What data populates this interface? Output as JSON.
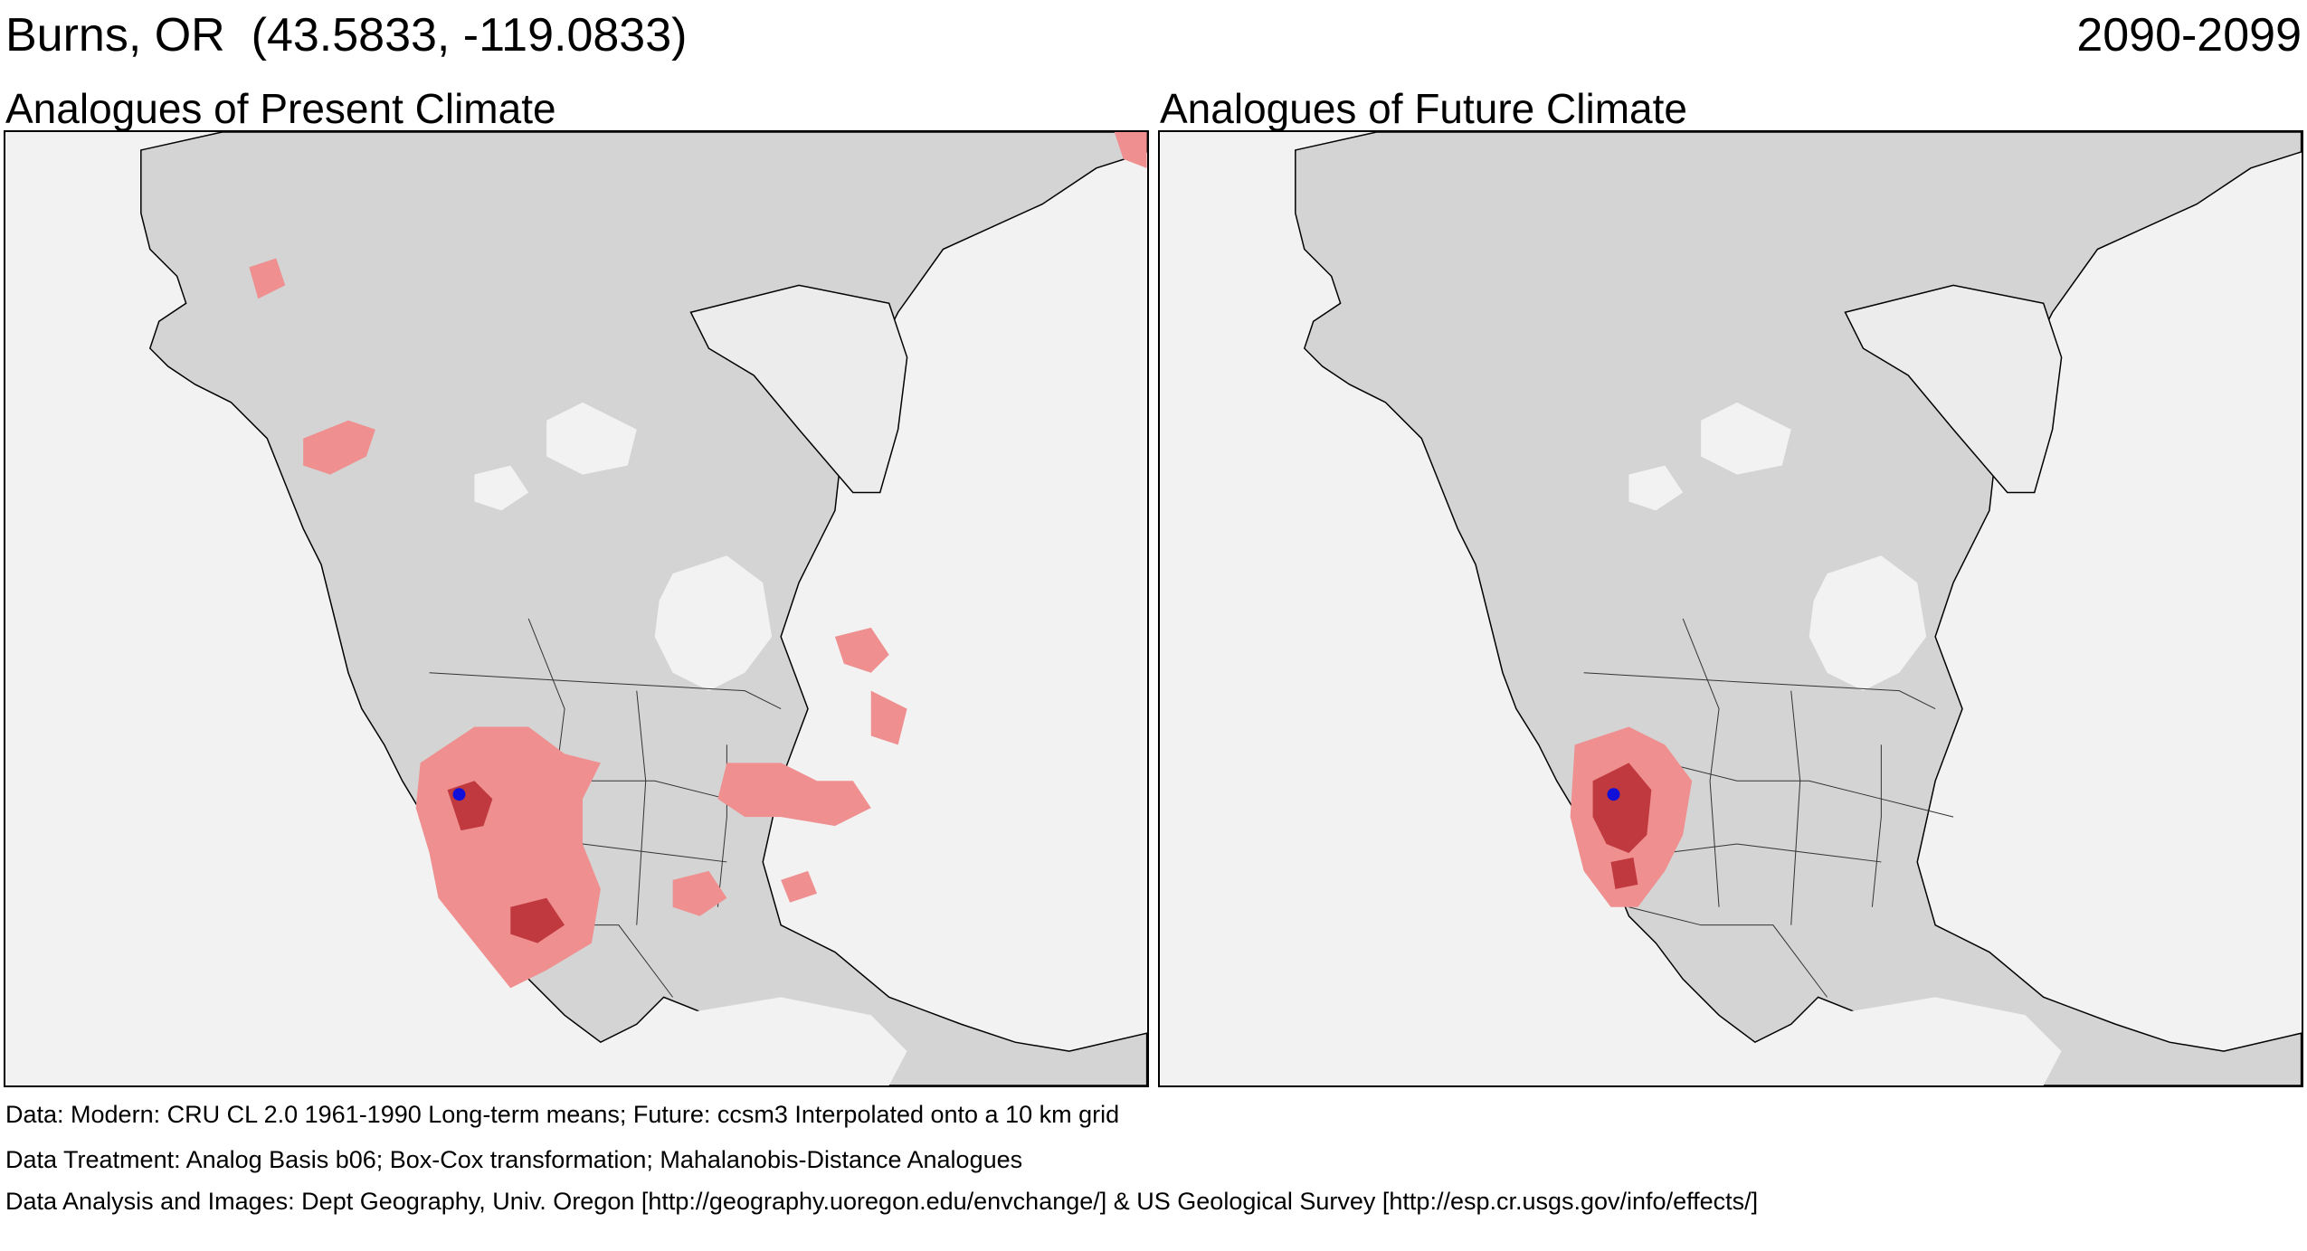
{
  "header": {
    "location": "Burns, OR  (43.5833, -119.0833)",
    "period": "2090-2099"
  },
  "panels": {
    "present": {
      "title": "Analogues of Present Climate"
    },
    "future": {
      "title": "Analogues of Future Climate"
    }
  },
  "footer": {
    "data_line": "Data:  Modern: CRU CL 2.0 1961-1990 Long-term means; Future: ccsm3 Interpolated onto a 10 km grid",
    "treatment_line": "Data Treatment:  Analog Basis b06; Box-Cox transformation; Mahalanobis-Distance Analogues",
    "analysis_line": "Data Analysis and Images:  Dept Geography, Univ. Oregon [http://geography.uoregon.edu/envchange/] & US Geological Survey [http://esp.cr.usgs.gov/info/effects/]"
  },
  "map_style": {
    "ocean_color": "#f2f2f2",
    "land_color": "#d4d4d4",
    "ice_color": "#ececec",
    "border_color": "#333333",
    "analog_light_color": "#ef8f8f",
    "analog_dark_color": "#c0393f",
    "site_marker_color": "#1010d8"
  }
}
